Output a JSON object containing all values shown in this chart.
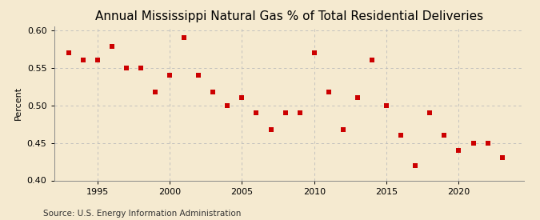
{
  "title": "Annual Mississippi Natural Gas % of Total Residential Deliveries",
  "ylabel": "Percent",
  "source": "Source: U.S. Energy Information Administration",
  "years": [
    1993,
    1994,
    1995,
    1996,
    1997,
    1998,
    1999,
    2000,
    2001,
    2002,
    2003,
    2004,
    2005,
    2006,
    2007,
    2008,
    2009,
    2010,
    2011,
    2012,
    2013,
    2014,
    2015,
    2016,
    2017,
    2018,
    2019,
    2020,
    2021,
    2022,
    2023
  ],
  "values": [
    0.57,
    0.56,
    0.56,
    0.578,
    0.55,
    0.55,
    0.518,
    0.54,
    0.59,
    0.54,
    0.518,
    0.5,
    0.51,
    0.49,
    0.468,
    0.49,
    0.49,
    0.57,
    0.518,
    0.468,
    0.51,
    0.56,
    0.5,
    0.46,
    0.42,
    0.49,
    0.46,
    0.44,
    0.45,
    0.45,
    0.43
  ],
  "marker_color": "#cc0000",
  "marker_size": 18,
  "ylim": [
    0.4,
    0.605
  ],
  "yticks": [
    0.4,
    0.45,
    0.5,
    0.55,
    0.6
  ],
  "xlim": [
    1992.0,
    2024.5
  ],
  "xticks": [
    1995,
    2000,
    2005,
    2010,
    2015,
    2020
  ],
  "grid_color": "#bbbbbb",
  "bg_color": "#f5ead0",
  "title_fontsize": 11,
  "axis_fontsize": 8,
  "source_fontsize": 7.5
}
